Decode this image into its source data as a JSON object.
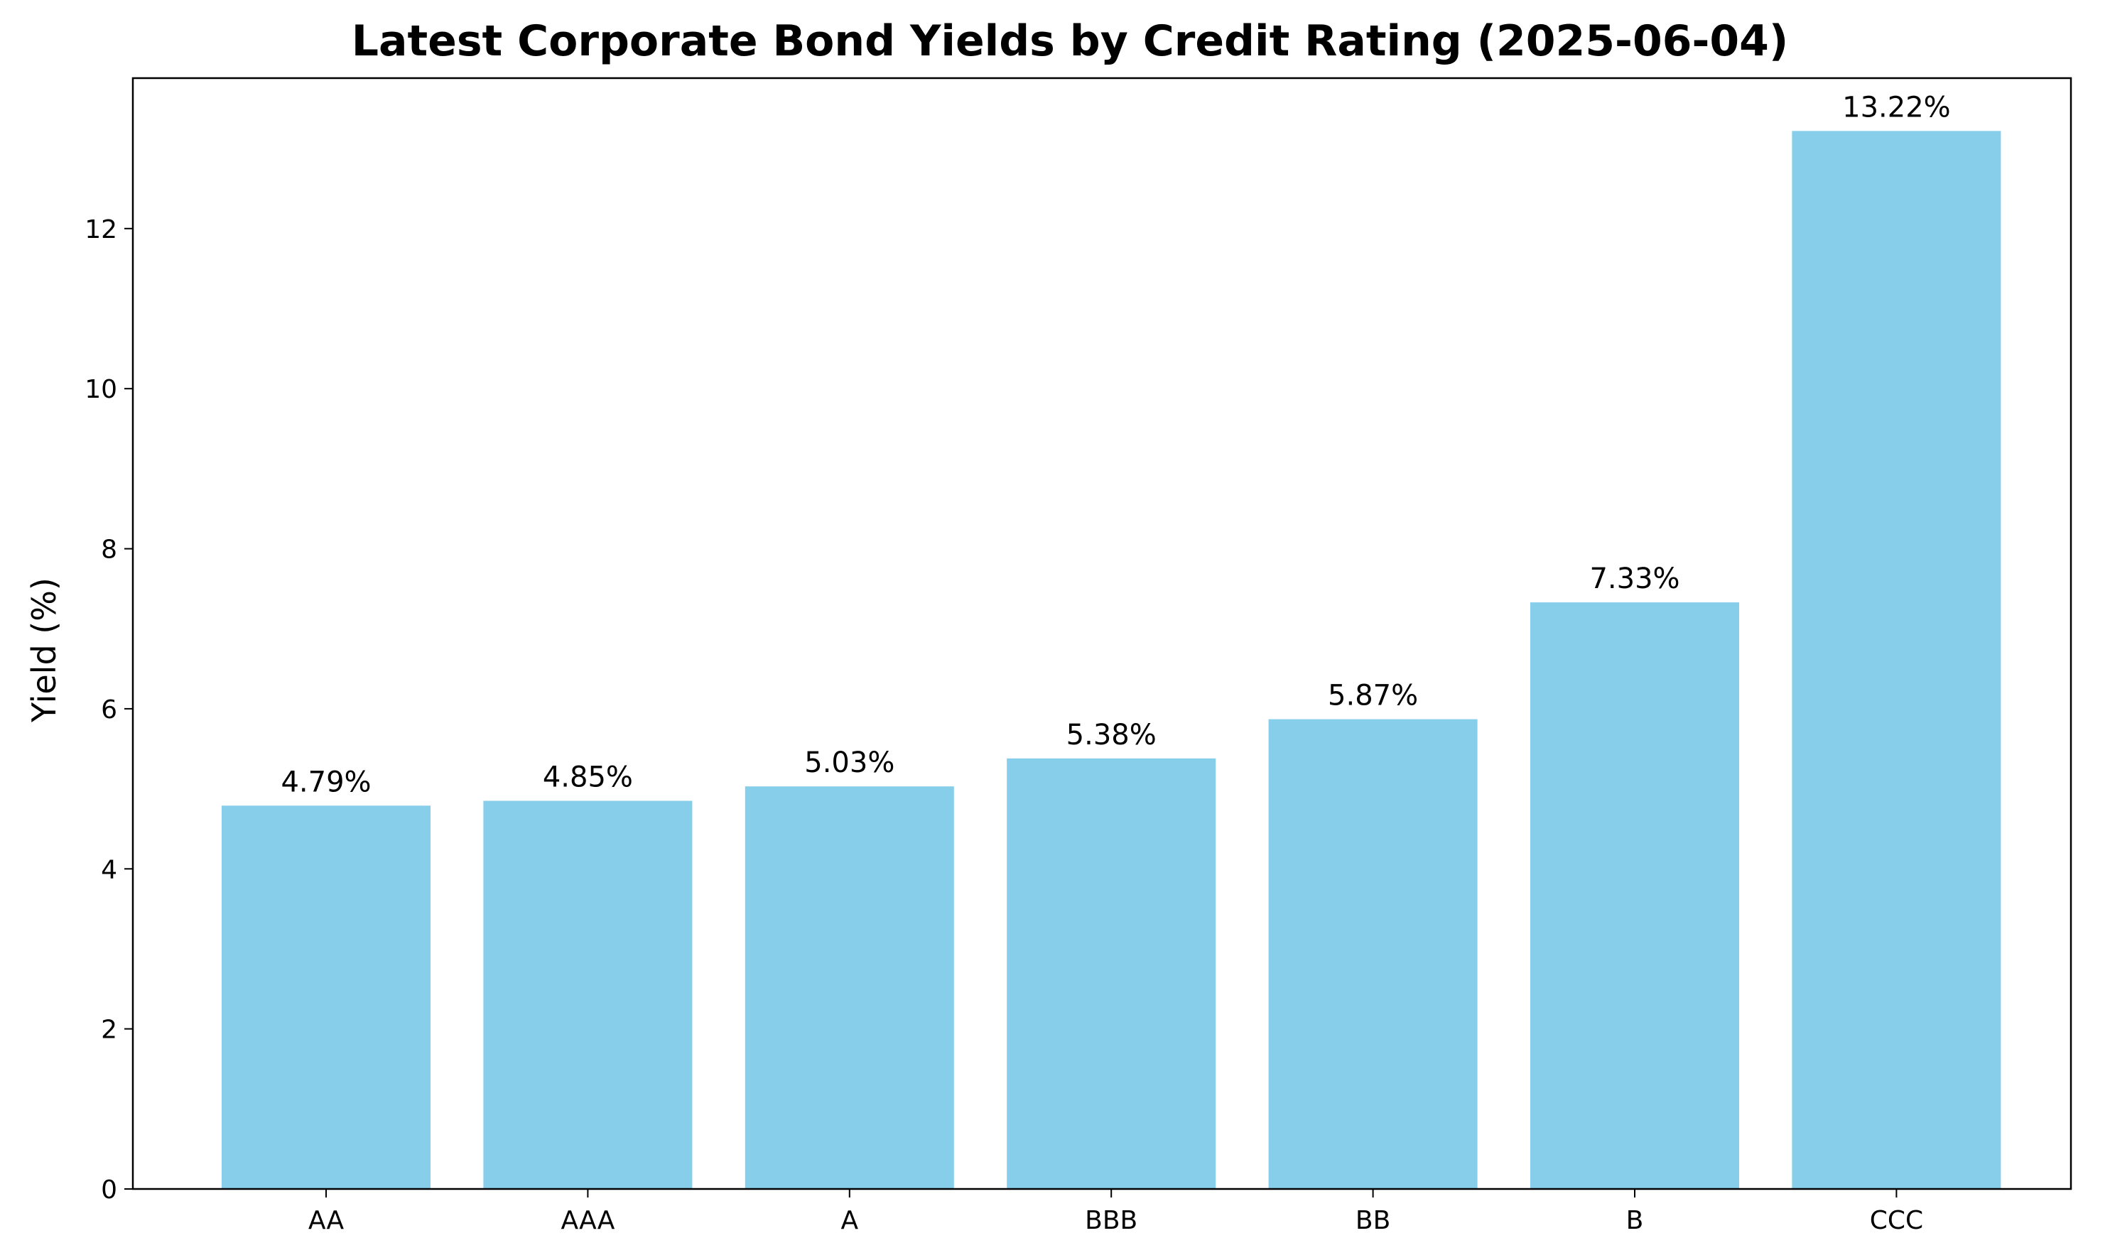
{
  "chart_data": {
    "type": "bar",
    "title": "Latest Corporate Bond Yields by Credit Rating (2025-06-04)",
    "xlabel": "",
    "ylabel": "Yield (%)",
    "categories": [
      "AA",
      "AAA",
      "A",
      "BBB",
      "BB",
      "B",
      "CCC"
    ],
    "values": [
      4.79,
      4.85,
      5.03,
      5.38,
      5.87,
      7.33,
      13.22
    ],
    "data_labels": [
      "4.79%",
      "4.85%",
      "5.03%",
      "5.38%",
      "5.87%",
      "7.33%",
      "13.22%"
    ],
    "yticks": [
      0,
      2,
      4,
      6,
      8,
      10,
      12
    ],
    "ylim": [
      0,
      13.88
    ],
    "grid": false,
    "legend": "none",
    "bar_color": "#87CEEB",
    "axis_color": "#000000"
  }
}
